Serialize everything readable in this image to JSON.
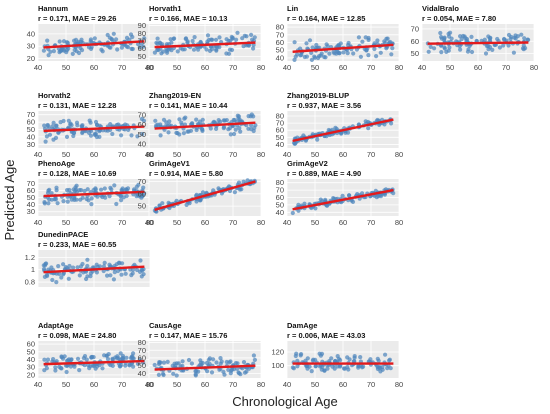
{
  "figure": {
    "xlabel": "Chronological Age",
    "ylabel": "Predicted Age",
    "colors": {
      "point": "#4f86bd",
      "fit": "#e31a1c",
      "panel_bg": "#ebebeb",
      "grid": "#ffffff"
    }
  },
  "chart_data": [
    {
      "type": "scatter",
      "title": "Hannum",
      "stat": "r = 0.171, MAE = 29.26",
      "xlim": [
        40,
        80
      ],
      "xticks": [
        40,
        50,
        60,
        70,
        80
      ],
      "ylim": [
        18,
        48
      ],
      "yticks": [
        20,
        30,
        40
      ],
      "fit": [
        [
          42,
          29
        ],
        [
          78,
          34
        ]
      ],
      "show_xticks": true
    },
    {
      "type": "scatter",
      "title": "Horvath1",
      "stat": "r = 0.166, MAE = 10.13",
      "xlim": [
        40,
        80
      ],
      "xticks": [
        40,
        50,
        60,
        70,
        80
      ],
      "ylim": [
        44,
        92
      ],
      "yticks": [
        50,
        60,
        70,
        80,
        90
      ],
      "fit": [
        [
          42,
          62
        ],
        [
          78,
          68
        ]
      ],
      "show_xticks": true
    },
    {
      "type": "scatter",
      "title": "Lin",
      "stat": "r = 0.164, MAE = 12.85",
      "xlim": [
        40,
        80
      ],
      "xticks": [
        40,
        50,
        60,
        70,
        80
      ],
      "ylim": [
        36,
        84
      ],
      "yticks": [
        40,
        50,
        60,
        70,
        80
      ],
      "fit": [
        [
          42,
          48
        ],
        [
          78,
          57
        ]
      ],
      "show_xticks": true
    },
    {
      "type": "scatter",
      "title": "VidalBralo",
      "stat": "r = 0.054, MAE = 7.80",
      "xlim": [
        40,
        80
      ],
      "xticks": [
        40,
        50,
        60,
        70,
        80
      ],
      "ylim": [
        44,
        74
      ],
      "yticks": [
        50,
        60,
        70
      ],
      "fit": [
        [
          42,
          58
        ],
        [
          78,
          59
        ]
      ],
      "show_xticks": true
    },
    {
      "type": "scatter",
      "title": "Horvath2",
      "stat": "r = 0.131, MAE = 12.28",
      "xlim": [
        40,
        80
      ],
      "xticks": [
        40,
        50,
        60,
        70,
        80
      ],
      "ylim": [
        25,
        75
      ],
      "yticks": [
        30,
        40,
        50,
        60,
        70
      ],
      "fit": [
        [
          42,
          48
        ],
        [
          78,
          54
        ]
      ],
      "show_xticks": true
    },
    {
      "type": "scatter",
      "title": "Zhang2019-EN",
      "stat": "r = 0.141, MAE = 10.44",
      "xlim": [
        40,
        80
      ],
      "xticks": [
        40,
        50,
        60,
        70,
        80
      ],
      "ylim": [
        36,
        74
      ],
      "yticks": [
        40,
        50,
        60,
        70
      ],
      "fit": [
        [
          42,
          56
        ],
        [
          78,
          62
        ]
      ],
      "show_xticks": true
    },
    {
      "type": "scatter",
      "title": "Zhang2019-BLUP",
      "stat": "r = 0.937, MAE = 3.56",
      "xlim": [
        40,
        80
      ],
      "xticks": [
        40,
        50,
        60,
        70,
        80
      ],
      "ylim": [
        35,
        87
      ],
      "yticks": [
        40,
        50,
        60,
        70,
        80
      ],
      "fit": [
        [
          42,
          45
        ],
        [
          78,
          75
        ]
      ],
      "show_xticks": true
    },
    {
      "type": "scatter",
      "title": "PhenoAge",
      "stat": "r = 0.128, MAE = 10.69",
      "xlim": [
        40,
        80
      ],
      "xticks": [
        40,
        50,
        60,
        70,
        80
      ],
      "ylim": [
        24,
        76
      ],
      "yticks": [
        30,
        40,
        50,
        60,
        70
      ],
      "fit": [
        [
          42,
          52
        ],
        [
          78,
          58
        ]
      ],
      "show_xticks": true
    },
    {
      "type": "scatter",
      "title": "GrimAgeV1",
      "stat": "r = 0.914, MAE = 5.80",
      "xlim": [
        40,
        80
      ],
      "xticks": [
        40,
        50,
        60,
        70,
        80
      ],
      "ylim": [
        42,
        72
      ],
      "yticks": [
        50,
        60,
        70
      ],
      "fit": [
        [
          42,
          47
        ],
        [
          78,
          70
        ]
      ],
      "show_xticks": true
    },
    {
      "type": "scatter",
      "title": "GrimAgeV2",
      "stat": "r = 0.889, MAE = 4.90",
      "xlim": [
        40,
        80
      ],
      "xticks": [
        40,
        50,
        60,
        70,
        80
      ],
      "ylim": [
        35,
        85
      ],
      "yticks": [
        40,
        50,
        60,
        70,
        80
      ],
      "fit": [
        [
          42,
          44
        ],
        [
          78,
          70
        ]
      ],
      "show_xticks": true
    },
    {
      "type": "scatter",
      "title": "DunedinPACE",
      "stat": "r = 0.233, MAE = 60.55",
      "xlim": [
        40,
        80
      ],
      "xticks": [
        40,
        50,
        60,
        70,
        80
      ],
      "ylim": [
        0.72,
        1.32
      ],
      "yticks": [
        0.8,
        1.0,
        1.2
      ],
      "fit": [
        [
          42,
          0.96
        ],
        [
          78,
          1.05
        ]
      ],
      "show_xticks": false
    },
    {
      "type": "scatter",
      "title": "AdaptAge",
      "stat": "r = 0.098, MAE = 24.80",
      "xlim": [
        40,
        80
      ],
      "xticks": [
        40,
        50,
        60,
        70,
        80
      ],
      "ylim": [
        16,
        64
      ],
      "yticks": [
        20,
        30,
        40,
        50,
        60
      ],
      "fit": [
        [
          42,
          34
        ],
        [
          78,
          38
        ]
      ],
      "show_xticks": true
    },
    {
      "type": "scatter",
      "title": "CausAge",
      "stat": "r = 0.147, MAE = 15.76",
      "xlim": [
        40,
        80
      ],
      "xticks": [
        40,
        50,
        60,
        70,
        80
      ],
      "ylim": [
        34,
        82
      ],
      "yticks": [
        40,
        50,
        60,
        70,
        80
      ],
      "fit": [
        [
          42,
          45
        ],
        [
          78,
          50
        ]
      ],
      "show_xticks": true
    },
    {
      "type": "scatter",
      "title": "DamAge",
      "stat": "r = 0.006, MAE = 43.03",
      "xlim": [
        40,
        80
      ],
      "xticks": [
        40,
        50,
        60,
        70,
        80
      ],
      "ylim": [
        82,
        136
      ],
      "yticks": [
        100,
        120
      ],
      "fit": [
        [
          42,
          103
        ],
        [
          78,
          103
        ]
      ],
      "show_xticks": true
    }
  ]
}
